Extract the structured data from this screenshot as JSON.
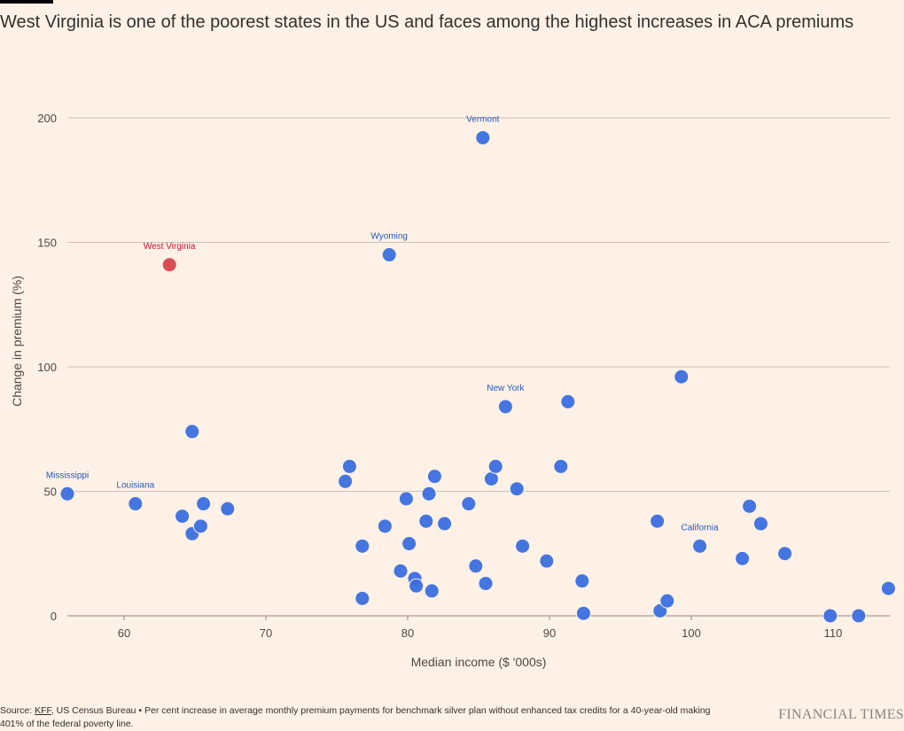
{
  "title": "West Virginia is one of the poorest states in the US and faces among the highest increases in ACA premiums",
  "footer": {
    "source_prefix": "Source: ",
    "source_link": "KFF",
    "source_rest": ", US Census Bureau • Per cent increase in average monthly premium payments for benchmark silver plan without enhanced tax credits for a 40-year-old making 401% of the federal poverty line."
  },
  "brand": "FINANCIAL TIMES",
  "colors": {
    "background": "#fff1e5",
    "point": "#3a6ee0",
    "highlight": "#d9434c",
    "label_blue": "#2359c4",
    "label_red": "#c4122f",
    "grid": "#cdbfb5"
  },
  "chart_data": {
    "type": "scatter",
    "title": "West Virginia is one of the poorest states in the US and faces among the highest increases in ACA premiums",
    "xlabel": "Median income ($ '000s)",
    "ylabel": "Change in premium (%)",
    "xlim": [
      56,
      114
    ],
    "ylim": [
      0,
      200
    ],
    "xticks": [
      60,
      70,
      80,
      90,
      100,
      110
    ],
    "yticks": [
      0,
      50,
      100,
      150,
      200
    ],
    "grid": "horizontal",
    "points": [
      {
        "x": 56.0,
        "y": 49,
        "label": "Mississippi"
      },
      {
        "x": 60.8,
        "y": 45,
        "label": "Louisiana"
      },
      {
        "x": 63.2,
        "y": 141,
        "label": "West Virginia",
        "highlight": true
      },
      {
        "x": 64.1,
        "y": 40
      },
      {
        "x": 64.8,
        "y": 74
      },
      {
        "x": 64.8,
        "y": 33
      },
      {
        "x": 65.4,
        "y": 36
      },
      {
        "x": 65.6,
        "y": 45
      },
      {
        "x": 67.3,
        "y": 43
      },
      {
        "x": 75.6,
        "y": 54
      },
      {
        "x": 75.9,
        "y": 60
      },
      {
        "x": 76.8,
        "y": 7
      },
      {
        "x": 76.8,
        "y": 28
      },
      {
        "x": 78.7,
        "y": 145,
        "label": "Wyoming"
      },
      {
        "x": 78.4,
        "y": 36
      },
      {
        "x": 79.5,
        "y": 18
      },
      {
        "x": 79.9,
        "y": 47
      },
      {
        "x": 80.1,
        "y": 29
      },
      {
        "x": 80.5,
        "y": 15
      },
      {
        "x": 80.6,
        "y": 12
      },
      {
        "x": 81.3,
        "y": 38
      },
      {
        "x": 81.5,
        "y": 49
      },
      {
        "x": 81.7,
        "y": 10
      },
      {
        "x": 81.9,
        "y": 56
      },
      {
        "x": 82.6,
        "y": 37
      },
      {
        "x": 84.3,
        "y": 45
      },
      {
        "x": 84.8,
        "y": 20
      },
      {
        "x": 85.3,
        "y": 192,
        "label": "Vermont"
      },
      {
        "x": 85.5,
        "y": 13
      },
      {
        "x": 85.9,
        "y": 55
      },
      {
        "x": 86.2,
        "y": 60
      },
      {
        "x": 86.9,
        "y": 84,
        "label": "New York"
      },
      {
        "x": 87.7,
        "y": 51
      },
      {
        "x": 88.1,
        "y": 28
      },
      {
        "x": 89.8,
        "y": 22
      },
      {
        "x": 90.8,
        "y": 60
      },
      {
        "x": 91.3,
        "y": 86
      },
      {
        "x": 92.3,
        "y": 14
      },
      {
        "x": 92.4,
        "y": 1
      },
      {
        "x": 97.6,
        "y": 38
      },
      {
        "x": 97.8,
        "y": 2
      },
      {
        "x": 98.3,
        "y": 6
      },
      {
        "x": 99.3,
        "y": 96
      },
      {
        "x": 100.6,
        "y": 28,
        "label": "California"
      },
      {
        "x": 103.6,
        "y": 23
      },
      {
        "x": 104.1,
        "y": 44
      },
      {
        "x": 104.9,
        "y": 37
      },
      {
        "x": 106.6,
        "y": 25
      },
      {
        "x": 109.8,
        "y": 0
      },
      {
        "x": 111.8,
        "y": 0
      },
      {
        "x": 113.9,
        "y": 11
      }
    ]
  }
}
